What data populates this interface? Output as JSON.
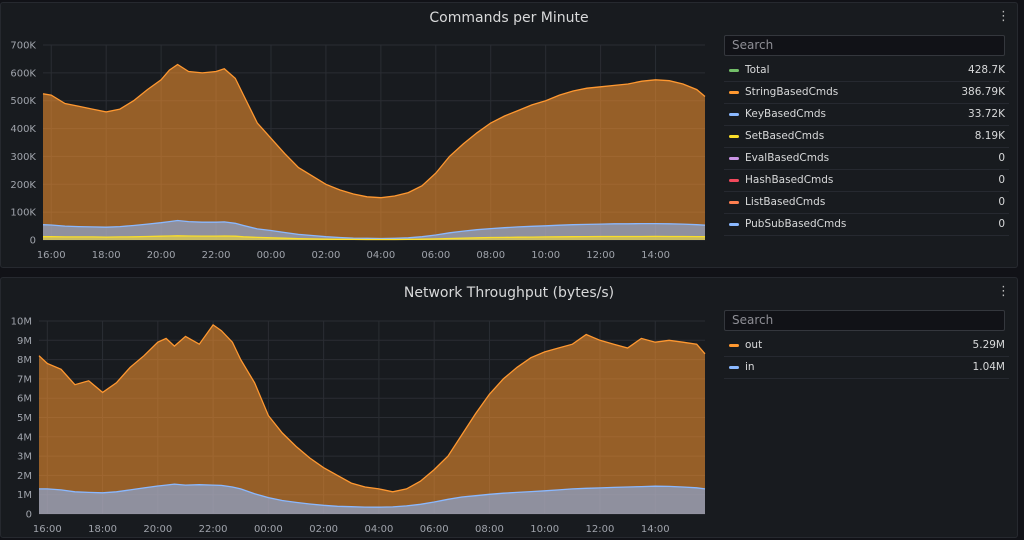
{
  "panels": [
    {
      "title": "Commands per Minute",
      "menu_icon": "⋮",
      "search_placeholder": "Search",
      "legend": [
        {
          "name": "Total",
          "value": "428.7K",
          "color": "#73bf69"
        },
        {
          "name": "StringBasedCmds",
          "value": "386.79K",
          "color": "#ff9830"
        },
        {
          "name": "KeyBasedCmds",
          "value": "33.72K",
          "color": "#8ab8ff"
        },
        {
          "name": "SetBasedCmds",
          "value": "8.19K",
          "color": "#fade2a"
        },
        {
          "name": "EvalBasedCmds",
          "value": "0",
          "color": "#ca95e5"
        },
        {
          "name": "HashBasedCmds",
          "value": "0",
          "color": "#f2495c"
        },
        {
          "name": "ListBasedCmds",
          "value": "0",
          "color": "#ff7f50"
        },
        {
          "name": "PubSubBasedCmds",
          "value": "0",
          "color": "#8ab8ff"
        }
      ],
      "y_ticks": [
        "0",
        "100K",
        "200K",
        "300K",
        "400K",
        "500K",
        "600K",
        "700K"
      ],
      "x_ticks": [
        "16:00",
        "18:00",
        "20:00",
        "22:00",
        "00:00",
        "02:00",
        "04:00",
        "06:00",
        "08:00",
        "10:00",
        "12:00",
        "14:00"
      ]
    },
    {
      "title": "Network Throughput (bytes/s)",
      "menu_icon": "⋮",
      "search_placeholder": "Search",
      "legend": [
        {
          "name": "out",
          "value": "5.29M",
          "color": "#ff9830"
        },
        {
          "name": "in",
          "value": "1.04M",
          "color": "#8ab8ff"
        }
      ],
      "y_ticks": [
        "0",
        "1M",
        "2M",
        "3M",
        "4M",
        "5M",
        "6M",
        "7M",
        "8M",
        "9M",
        "10M"
      ],
      "x_ticks": [
        "16:00",
        "18:00",
        "20:00",
        "22:00",
        "00:00",
        "02:00",
        "04:00",
        "06:00",
        "08:00",
        "10:00",
        "12:00",
        "14:00"
      ]
    }
  ],
  "chart_data": [
    {
      "type": "area",
      "title": "Commands per Minute",
      "x_hours": [
        15.7,
        16,
        16.5,
        17,
        17.5,
        18,
        18.5,
        19,
        19.5,
        20,
        20.3,
        20.6,
        21,
        21.5,
        22,
        22.3,
        22.7,
        23,
        23.5,
        24,
        24.5,
        25,
        25.5,
        26,
        26.5,
        27,
        27.5,
        28,
        28.5,
        29,
        29.5,
        30,
        30.5,
        31,
        31.5,
        32,
        32.5,
        33,
        33.5,
        34,
        34.5,
        35,
        35.5,
        36,
        36.5,
        37,
        37.5,
        38,
        38.5,
        39,
        39.5,
        39.8
      ],
      "ylim": [
        0,
        700000
      ],
      "series": [
        {
          "name": "StringBasedCmds",
          "color": "#ff9830",
          "values": [
            525000,
            520000,
            490000,
            480000,
            470000,
            460000,
            470000,
            500000,
            540000,
            575000,
            610000,
            630000,
            605000,
            600000,
            605000,
            615000,
            580000,
            520000,
            420000,
            365000,
            310000,
            260000,
            230000,
            200000,
            180000,
            165000,
            155000,
            152000,
            158000,
            170000,
            195000,
            240000,
            300000,
            345000,
            385000,
            420000,
            445000,
            465000,
            485000,
            500000,
            520000,
            535000,
            545000,
            550000,
            555000,
            560000,
            570000,
            575000,
            572000,
            560000,
            540000,
            515000
          ]
        },
        {
          "name": "KeyBasedCmds",
          "color": "#8ab8ff",
          "values": [
            55000,
            54000,
            50000,
            48000,
            47000,
            46000,
            48000,
            52000,
            57000,
            62000,
            66000,
            70000,
            66000,
            64000,
            64000,
            65000,
            60000,
            52000,
            40000,
            34000,
            27000,
            20000,
            16000,
            12000,
            9000,
            7000,
            6000,
            5500,
            6000,
            8000,
            12000,
            18000,
            26000,
            32000,
            37000,
            41000,
            44000,
            47000,
            49000,
            51000,
            53000,
            55000,
            56000,
            57000,
            58000,
            58000,
            59000,
            59000,
            58000,
            57000,
            55000,
            53000
          ]
        },
        {
          "name": "SetBasedCmds",
          "color": "#fade2a",
          "values": [
            12000,
            12000,
            11000,
            11000,
            11000,
            10500,
            11000,
            11500,
            12500,
            13500,
            14500,
            15000,
            14500,
            14000,
            14000,
            14500,
            13500,
            11500,
            9500,
            8000,
            6500,
            5000,
            4000,
            3000,
            2400,
            2000,
            1800,
            1700,
            1800,
            2200,
            3000,
            4000,
            5500,
            7000,
            8000,
            9000,
            9500,
            10000,
            10500,
            11000,
            11500,
            12000,
            12200,
            12400,
            12500,
            12600,
            12700,
            12800,
            12700,
            12500,
            12200,
            12000
          ]
        }
      ]
    },
    {
      "type": "area",
      "title": "Network Throughput (bytes/s)",
      "x_hours": [
        15.7,
        16,
        16.5,
        17,
        17.5,
        18,
        18.5,
        19,
        19.5,
        20,
        20.3,
        20.6,
        21,
        21.5,
        22,
        22.3,
        22.7,
        23,
        23.5,
        24,
        24.5,
        25,
        25.5,
        26,
        26.5,
        27,
        27.5,
        28,
        28.5,
        29,
        29.5,
        30,
        30.5,
        31,
        31.5,
        32,
        32.5,
        33,
        33.5,
        34,
        34.5,
        35,
        35.5,
        36,
        36.5,
        37,
        37.5,
        38,
        38.5,
        39,
        39.5,
        39.8
      ],
      "ylim": [
        0,
        10000000
      ],
      "series": [
        {
          "name": "out",
          "color": "#ff9830",
          "values": [
            8200000,
            7800000,
            7500000,
            6700000,
            6900000,
            6300000,
            6800000,
            7600000,
            8200000,
            8900000,
            9100000,
            8700000,
            9200000,
            8800000,
            9800000,
            9500000,
            8900000,
            8000000,
            6800000,
            5100000,
            4200000,
            3500000,
            2900000,
            2400000,
            2000000,
            1600000,
            1400000,
            1300000,
            1150000,
            1300000,
            1700000,
            2300000,
            3000000,
            4100000,
            5200000,
            6200000,
            7000000,
            7600000,
            8100000,
            8400000,
            8600000,
            8800000,
            9300000,
            9000000,
            8800000,
            8600000,
            9100000,
            8900000,
            9000000,
            8900000,
            8800000,
            8300000
          ]
        },
        {
          "name": "in",
          "color": "#8ab8ff",
          "values": [
            1300000,
            1300000,
            1250000,
            1150000,
            1120000,
            1100000,
            1150000,
            1250000,
            1350000,
            1450000,
            1500000,
            1550000,
            1500000,
            1520000,
            1500000,
            1480000,
            1400000,
            1300000,
            1050000,
            850000,
            700000,
            600000,
            520000,
            450000,
            400000,
            380000,
            360000,
            350000,
            370000,
            420000,
            500000,
            620000,
            760000,
            880000,
            950000,
            1020000,
            1080000,
            1120000,
            1160000,
            1200000,
            1250000,
            1300000,
            1330000,
            1350000,
            1380000,
            1400000,
            1420000,
            1440000,
            1430000,
            1400000,
            1360000,
            1300000
          ]
        }
      ]
    }
  ]
}
